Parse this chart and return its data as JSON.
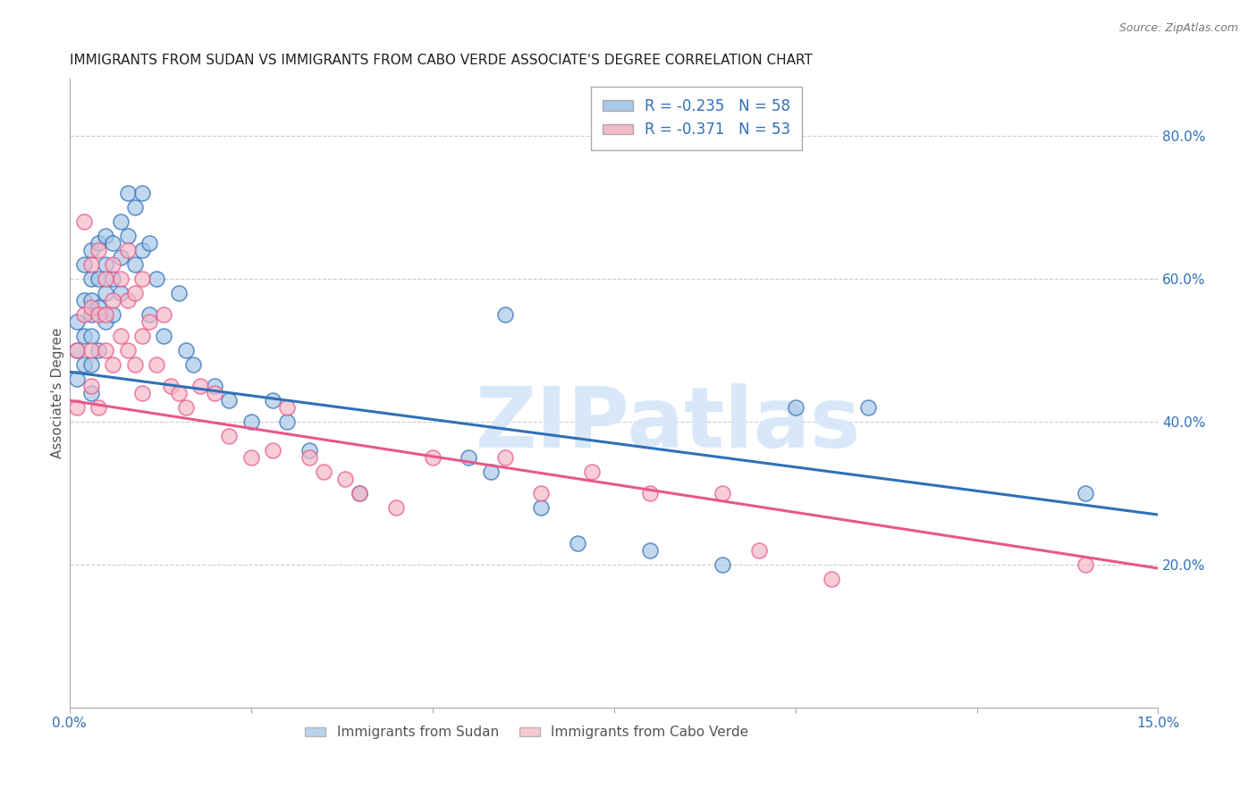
{
  "title": "IMMIGRANTS FROM SUDAN VS IMMIGRANTS FROM CABO VERDE ASSOCIATE'S DEGREE CORRELATION CHART",
  "source": "Source: ZipAtlas.com",
  "ylabel": "Associate's Degree",
  "right_ytick_labels": [
    "20.0%",
    "40.0%",
    "60.0%",
    "80.0%"
  ],
  "right_ytick_values": [
    0.2,
    0.4,
    0.6,
    0.8
  ],
  "xlim": [
    0.0,
    0.15
  ],
  "ylim": [
    0.0,
    0.88
  ],
  "xticklabels_show": [
    "0.0%",
    "15.0%"
  ],
  "xtick_values_show": [
    0.0,
    0.15
  ],
  "xtick_values_all": [
    0.0,
    0.025,
    0.05,
    0.075,
    0.1,
    0.125,
    0.15
  ],
  "legend_label_blue": "Immigrants from Sudan",
  "legend_label_pink": "Immigrants from Cabo Verde",
  "R_blue": -0.235,
  "N_blue": 58,
  "R_pink": -0.371,
  "N_pink": 53,
  "color_blue": "#a8c8e8",
  "color_pink": "#f4b8c8",
  "line_blue": "#3070b8",
  "line_pink": "#e85888",
  "legend_text_color": "#3070b8",
  "watermark": "ZIPatlas",
  "watermark_color": "#d8e8f8",
  "grid_color": "#cccccc",
  "background_color": "#ffffff",
  "title_fontsize": 11,
  "axis_label_fontsize": 11,
  "tick_fontsize": 11,
  "blue_line_y0": 0.47,
  "blue_line_y1": 0.27,
  "pink_line_y0": 0.43,
  "pink_line_y1": 0.195,
  "blue_points_x": [
    0.001,
    0.001,
    0.001,
    0.002,
    0.002,
    0.002,
    0.002,
    0.003,
    0.003,
    0.003,
    0.003,
    0.003,
    0.003,
    0.003,
    0.004,
    0.004,
    0.004,
    0.004,
    0.005,
    0.005,
    0.005,
    0.005,
    0.006,
    0.006,
    0.006,
    0.007,
    0.007,
    0.007,
    0.008,
    0.008,
    0.009,
    0.009,
    0.01,
    0.01,
    0.011,
    0.011,
    0.012,
    0.013,
    0.015,
    0.016,
    0.017,
    0.02,
    0.022,
    0.025,
    0.028,
    0.03,
    0.033,
    0.04,
    0.055,
    0.058,
    0.06,
    0.065,
    0.07,
    0.08,
    0.09,
    0.1,
    0.11,
    0.14
  ],
  "blue_points_y": [
    0.54,
    0.5,
    0.46,
    0.62,
    0.57,
    0.52,
    0.48,
    0.64,
    0.6,
    0.57,
    0.55,
    0.52,
    0.48,
    0.44,
    0.65,
    0.6,
    0.56,
    0.5,
    0.66,
    0.62,
    0.58,
    0.54,
    0.65,
    0.6,
    0.55,
    0.68,
    0.63,
    0.58,
    0.72,
    0.66,
    0.7,
    0.62,
    0.72,
    0.64,
    0.65,
    0.55,
    0.6,
    0.52,
    0.58,
    0.5,
    0.48,
    0.45,
    0.43,
    0.4,
    0.43,
    0.4,
    0.36,
    0.3,
    0.35,
    0.33,
    0.55,
    0.28,
    0.23,
    0.22,
    0.2,
    0.42,
    0.42,
    0.3
  ],
  "pink_points_x": [
    0.001,
    0.001,
    0.002,
    0.002,
    0.003,
    0.003,
    0.003,
    0.003,
    0.004,
    0.004,
    0.004,
    0.005,
    0.005,
    0.005,
    0.006,
    0.006,
    0.006,
    0.007,
    0.007,
    0.008,
    0.008,
    0.008,
    0.009,
    0.009,
    0.01,
    0.01,
    0.01,
    0.011,
    0.012,
    0.013,
    0.014,
    0.015,
    0.016,
    0.018,
    0.02,
    0.022,
    0.025,
    0.028,
    0.03,
    0.033,
    0.035,
    0.038,
    0.04,
    0.045,
    0.05,
    0.06,
    0.065,
    0.072,
    0.08,
    0.09,
    0.095,
    0.105,
    0.14
  ],
  "pink_points_y": [
    0.5,
    0.42,
    0.68,
    0.55,
    0.62,
    0.56,
    0.5,
    0.45,
    0.64,
    0.55,
    0.42,
    0.6,
    0.55,
    0.5,
    0.62,
    0.57,
    0.48,
    0.6,
    0.52,
    0.64,
    0.57,
    0.5,
    0.58,
    0.48,
    0.6,
    0.52,
    0.44,
    0.54,
    0.48,
    0.55,
    0.45,
    0.44,
    0.42,
    0.45,
    0.44,
    0.38,
    0.35,
    0.36,
    0.42,
    0.35,
    0.33,
    0.32,
    0.3,
    0.28,
    0.35,
    0.35,
    0.3,
    0.33,
    0.3,
    0.3,
    0.22,
    0.18,
    0.2
  ]
}
